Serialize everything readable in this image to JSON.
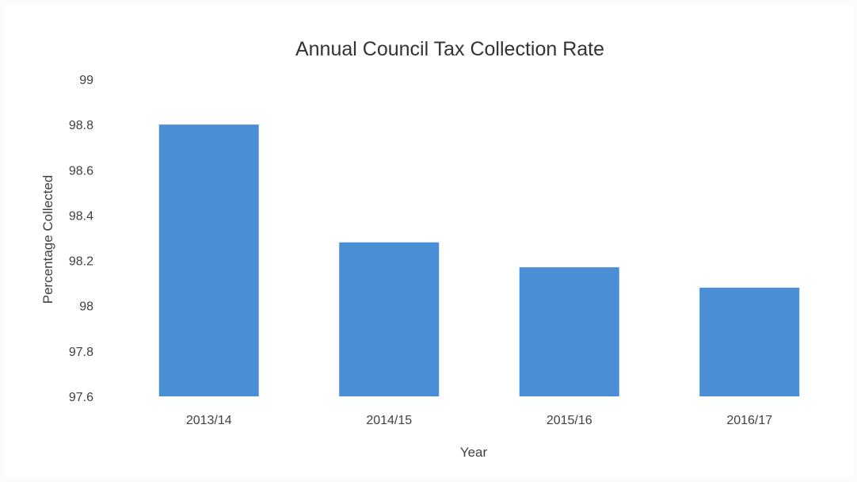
{
  "chart_data": {
    "type": "bar",
    "title": "Annual Council Tax Collection Rate",
    "xlabel": "Year",
    "ylabel": "Percentage Collected",
    "categories": [
      "2013/14",
      "2014/15",
      "2015/16",
      "2016/17"
    ],
    "values": [
      98.8,
      98.28,
      98.17,
      98.08
    ],
    "ylim": [
      97.6,
      99
    ],
    "yticks": [
      "99",
      "98.8",
      "98.6",
      "98.4",
      "98.2",
      "98",
      "97.8",
      "97.6"
    ],
    "grid": false,
    "legend": "none",
    "bar_color": "#4a8fd6",
    "text_color": "#404040"
  }
}
